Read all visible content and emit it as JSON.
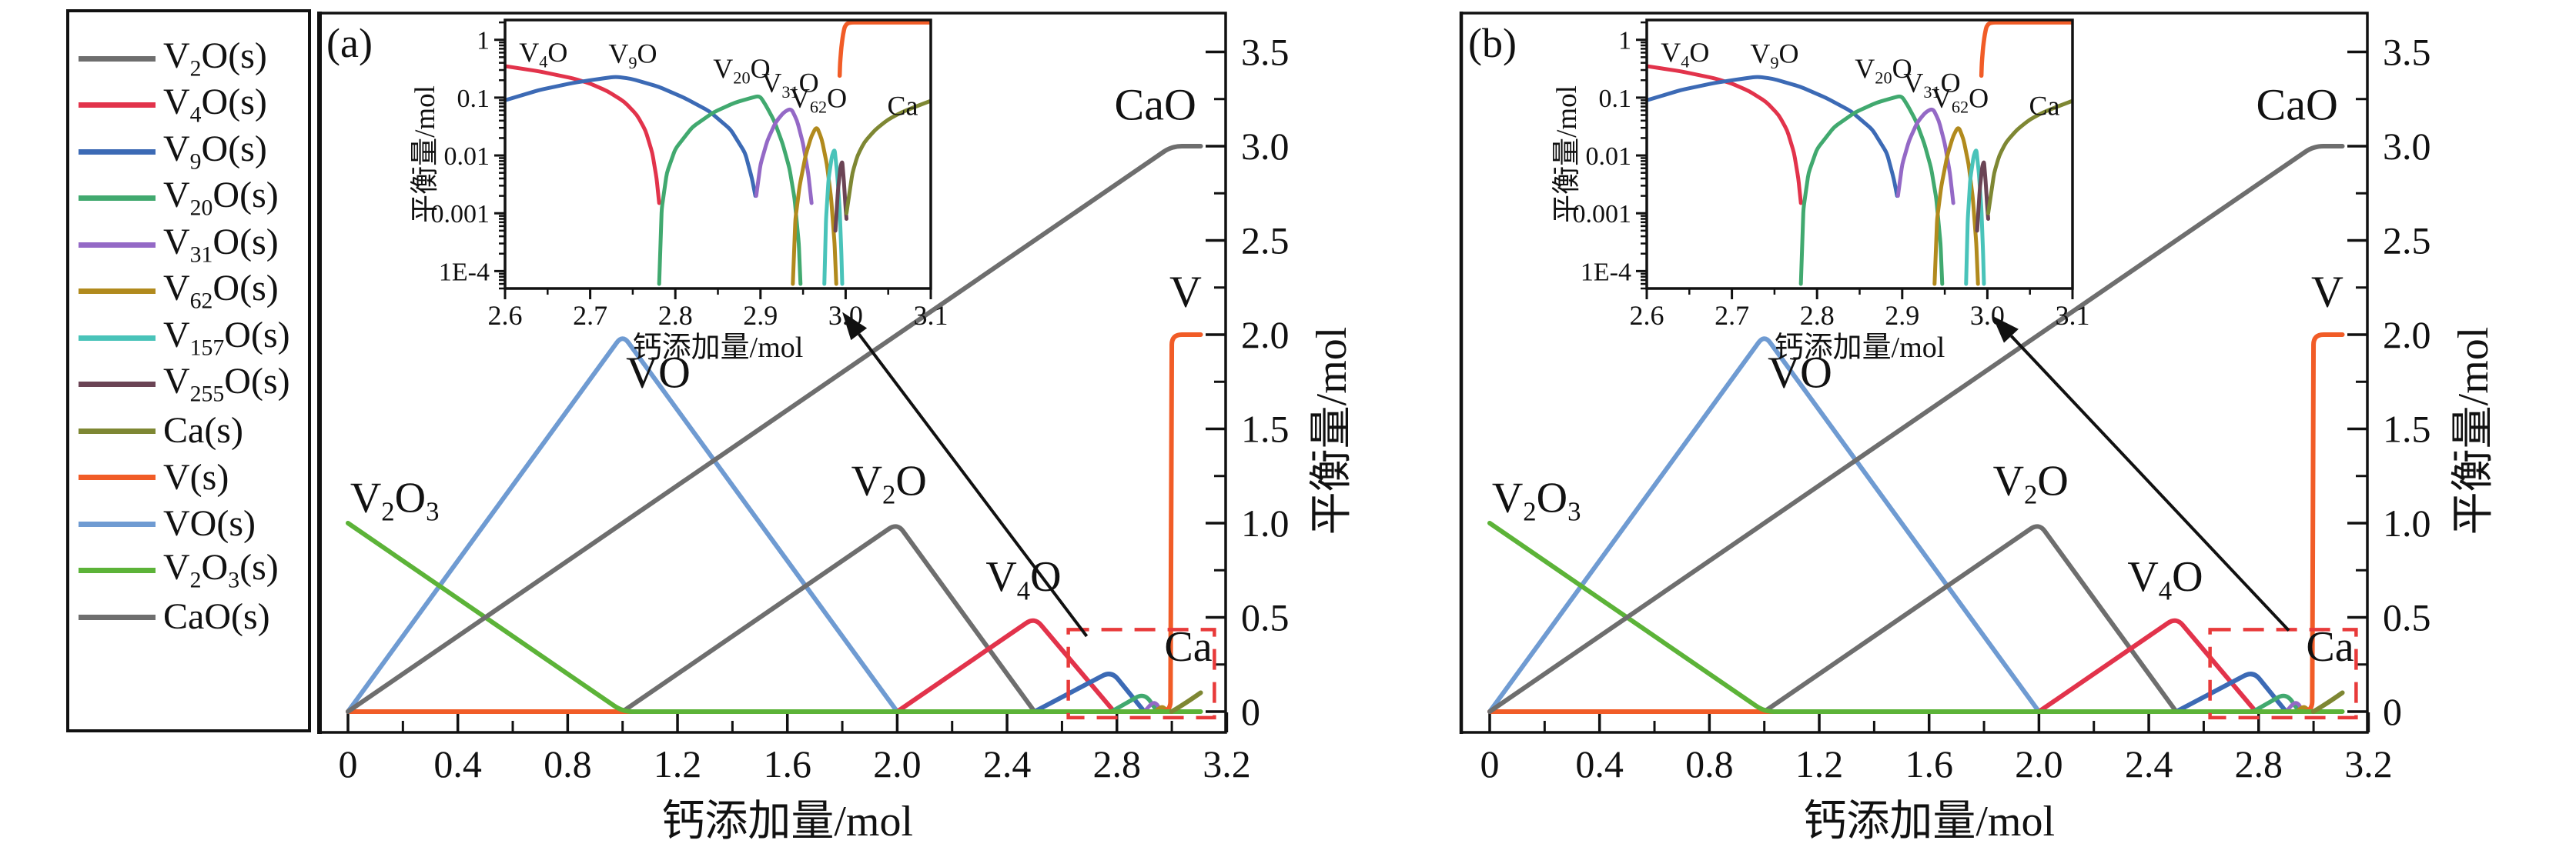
{
  "legend": {
    "items": [
      {
        "label": "V|2|O(s)",
        "color": "#6e6e6e"
      },
      {
        "label": "V|4|O(s)",
        "color": "#e2334b"
      },
      {
        "label": "V|9|O(s)",
        "color": "#3c6ab5"
      },
      {
        "label": "V|20|O(s)",
        "color": "#41a96f"
      },
      {
        "label": "V|31|O(s)",
        "color": "#9469c6"
      },
      {
        "label": "V|62|O(s)",
        "color": "#b18a1d"
      },
      {
        "label": "V|157|O(s)",
        "color": "#49c3b9"
      },
      {
        "label": "V|255|O(s)",
        "color": "#6b4455"
      },
      {
        "label": "Ca(s)",
        "color": "#7e8733"
      },
      {
        "label": "V(s)",
        "color": "#f15c27"
      },
      {
        "label": "VO(s)",
        "color": "#6f9bd2"
      },
      {
        "label": "V|2|O|3|(s)",
        "color": "#5cb338"
      },
      {
        "label": "CaO(s)",
        "color": "#6e6e6e"
      }
    ]
  },
  "chart_data": {
    "type": "line",
    "xlabel": "钙添加量/mol",
    "ylabel": "平衡量/mol",
    "xlim": [
      -0.104,
      3.196
    ],
    "ylim": [
      -0.11,
      3.71
    ],
    "x_ticks": [
      {
        "v": 0,
        "t": "0"
      },
      {
        "v": 0.4,
        "t": "0.4"
      },
      {
        "v": 0.8,
        "t": "0.8"
      },
      {
        "v": 1.2,
        "t": "1.2"
      },
      {
        "v": 1.6,
        "t": "1.6"
      },
      {
        "v": 2.0,
        "t": "2.0"
      },
      {
        "v": 2.4,
        "t": "2.4"
      },
      {
        "v": 2.8,
        "t": "2.8"
      },
      {
        "v": 3.2,
        "t": "3.2"
      }
    ],
    "x_minor": [
      0.2,
      0.6,
      1.0,
      1.4,
      1.8,
      2.2,
      2.6,
      3.0
    ],
    "y_ticks": [
      {
        "v": 0,
        "t": "0"
      },
      {
        "v": 0.5,
        "t": "0.5"
      },
      {
        "v": 1.0,
        "t": "1.0"
      },
      {
        "v": 1.5,
        "t": "1.5"
      },
      {
        "v": 2.0,
        "t": "2.0"
      },
      {
        "v": 2.5,
        "t": "2.5"
      },
      {
        "v": 3.0,
        "t": "3.0"
      },
      {
        "v": 3.5,
        "t": "3.5"
      }
    ],
    "y_minor": [
      0.25,
      0.75,
      1.25,
      1.75,
      2.25,
      2.75,
      3.25
    ],
    "main_series": [
      {
        "name": "VO",
        "color": "#6f9bd2",
        "width": 6,
        "points": [
          [
            0,
            0
          ],
          [
            1.0,
            2.0
          ],
          [
            2.0,
            0
          ]
        ]
      },
      {
        "name": "V2O",
        "color": "#6e6e6e",
        "width": 6,
        "points": [
          [
            1.0,
            0
          ],
          [
            2.0,
            1.0
          ],
          [
            2.5,
            0
          ]
        ]
      },
      {
        "name": "V4O",
        "color": "#e2334b",
        "width": 6,
        "points": [
          [
            2.0,
            0
          ],
          [
            2.5,
            0.5
          ],
          [
            2.79,
            0
          ]
        ]
      },
      {
        "name": "V9O",
        "color": "#3c6ab5",
        "width": 6,
        "points": [
          [
            2.5,
            0
          ],
          [
            2.78,
            0.215
          ],
          [
            2.9,
            0
          ]
        ]
      },
      {
        "name": "V20O",
        "color": "#41a96f",
        "width": 5.5,
        "points": [
          [
            2.78,
            0
          ],
          [
            2.9,
            0.1
          ],
          [
            2.947,
            0
          ]
        ]
      },
      {
        "name": "V31O",
        "color": "#9469c6",
        "width": 5,
        "points": [
          [
            2.9,
            0
          ],
          [
            2.937,
            0.06
          ],
          [
            2.962,
            0
          ]
        ]
      },
      {
        "name": "V62O",
        "color": "#b18a1d",
        "width": 5,
        "points": [
          [
            2.937,
            0
          ],
          [
            2.966,
            0.03
          ],
          [
            2.985,
            0
          ]
        ]
      },
      {
        "name": "V157O",
        "color": "#49c3b9",
        "width": 4.5,
        "points": [
          [
            2.966,
            0
          ],
          [
            2.985,
            0.012
          ],
          [
            2.995,
            0
          ]
        ]
      },
      {
        "name": "V255O",
        "color": "#6b4455",
        "width": 4.5,
        "points": [
          [
            2.985,
            0
          ],
          [
            2.993,
            0.0075
          ],
          [
            2.999,
            0
          ]
        ]
      },
      {
        "name": "V",
        "color": "#f15c27",
        "width": 6,
        "points": [
          [
            0,
            0
          ],
          [
            2.995,
            0
          ],
          [
            3.0,
            2.0
          ],
          [
            3.105,
            2.0
          ]
        ]
      },
      {
        "name": "V2O3",
        "color": "#5cb338",
        "width": 6,
        "points": [
          [
            0,
            1.0
          ],
          [
            1.0,
            0
          ],
          [
            3.105,
            0
          ]
        ]
      },
      {
        "name": "CaO",
        "color": "#6e6e6e",
        "width": 6,
        "points": [
          [
            0,
            0
          ],
          [
            3.0,
            3.0
          ],
          [
            3.105,
            3.0
          ]
        ]
      },
      {
        "name": "Ca",
        "color": "#7e8733",
        "width": 6,
        "points": [
          [
            2.999,
            0
          ],
          [
            3.02,
            0.018
          ],
          [
            3.06,
            0.055
          ],
          [
            3.105,
            0.1
          ]
        ]
      }
    ],
    "main_labels": [
      {
        "text": "V|2|O|3",
        "x": 0.17,
        "y": 1.06,
        "size": 56,
        "anchor": "middle"
      },
      {
        "text": "VO",
        "x": 1.13,
        "y": 1.72,
        "size": 58,
        "anchor": "middle"
      },
      {
        "text": "V|2|O",
        "x": 1.97,
        "y": 1.15,
        "size": 56,
        "anchor": "middle"
      },
      {
        "text": "V|4|O",
        "x": 2.46,
        "y": 0.64,
        "size": 56,
        "anchor": "middle"
      },
      {
        "text": "CaO",
        "x": 2.94,
        "y": 3.14,
        "size": 58,
        "anchor": "middle"
      },
      {
        "text": "V",
        "x": 3.05,
        "y": 2.15,
        "size": 58,
        "anchor": "middle"
      },
      {
        "text": "Ca",
        "x": 3.06,
        "y": 0.27,
        "size": 56,
        "anchor": "middle"
      }
    ],
    "zoom_box": {
      "x1": 2.623,
      "x2": 3.155,
      "y1": -0.032,
      "y2": 0.435,
      "color": "#e83a3a"
    },
    "inset": {
      "type": "line",
      "xlabel": "钙添加量/mol",
      "ylabel": "平衡量/mol",
      "xlim": [
        2.6,
        3.1
      ],
      "ylim": [
        5e-05,
        2.2
      ],
      "x_ticks": [
        {
          "v": 2.6,
          "t": "2.6"
        },
        {
          "v": 2.7,
          "t": "2.7"
        },
        {
          "v": 2.8,
          "t": "2.8"
        },
        {
          "v": 2.9,
          "t": "2.9"
        },
        {
          "v": 3.0,
          "t": "3.0"
        },
        {
          "v": 3.1,
          "t": "3.1"
        }
      ],
      "y_ticks": [
        {
          "v": 1,
          "t": "1"
        },
        {
          "v": 0.1,
          "t": "0.1"
        },
        {
          "v": 0.01,
          "t": "0.01"
        },
        {
          "v": 0.001,
          "t": "0.001"
        },
        {
          "v": 0.0001,
          "t": "1E-4"
        }
      ],
      "series": [
        {
          "name": "V4O",
          "color": "#e2334b",
          "width": 5,
          "points": [
            [
              2.6,
              0.35
            ],
            [
              2.64,
              0.285
            ],
            [
              2.68,
              0.215
            ],
            [
              2.7,
              0.175
            ],
            [
              2.72,
              0.13
            ],
            [
              2.74,
              0.085
            ],
            [
              2.755,
              0.05
            ],
            [
              2.765,
              0.027
            ],
            [
              2.773,
              0.011
            ],
            [
              2.778,
              0.004
            ],
            [
              2.781,
              0.0015
            ]
          ]
        },
        {
          "name": "V9O",
          "color": "#3c6ab5",
          "width": 5,
          "points": [
            [
              2.6,
              0.09
            ],
            [
              2.64,
              0.135
            ],
            [
              2.68,
              0.18
            ],
            [
              2.71,
              0.21
            ],
            [
              2.73,
              0.23
            ],
            [
              2.748,
              0.212
            ],
            [
              2.78,
              0.155
            ],
            [
              2.81,
              0.1
            ],
            [
              2.84,
              0.058
            ],
            [
              2.865,
              0.028
            ],
            [
              2.882,
              0.011
            ],
            [
              2.89,
              0.004
            ],
            [
              2.894,
              0.002
            ]
          ]
        },
        {
          "name": "V20O",
          "color": "#41a96f",
          "width": 5,
          "points": [
            [
              2.781,
              6e-05
            ],
            [
              2.784,
              0.0012
            ],
            [
              2.79,
              0.005
            ],
            [
              2.8,
              0.013
            ],
            [
              2.82,
              0.031
            ],
            [
              2.845,
              0.056
            ],
            [
              2.87,
              0.082
            ],
            [
              2.89,
              0.1
            ],
            [
              2.899,
              0.108
            ],
            [
              2.906,
              0.075
            ],
            [
              2.916,
              0.04
            ],
            [
              2.926,
              0.016
            ],
            [
              2.934,
              0.006
            ],
            [
              2.94,
              0.0018
            ],
            [
              2.945,
              0.0003
            ],
            [
              2.947,
              6e-05
            ]
          ]
        },
        {
          "name": "V31O",
          "color": "#9469c6",
          "width": 5,
          "points": [
            [
              2.895,
              0.002
            ],
            [
              2.9,
              0.007
            ],
            [
              2.908,
              0.018
            ],
            [
              2.918,
              0.038
            ],
            [
              2.928,
              0.057
            ],
            [
              2.936,
              0.065
            ],
            [
              2.943,
              0.04
            ],
            [
              2.95,
              0.016
            ],
            [
              2.956,
              0.005
            ],
            [
              2.96,
              0.0015
            ]
          ]
        },
        {
          "name": "V62O",
          "color": "#b18a1d",
          "width": 5,
          "points": [
            [
              2.938,
              6e-05
            ],
            [
              2.941,
              0.0008
            ],
            [
              2.946,
              0.003
            ],
            [
              2.953,
              0.01
            ],
            [
              2.96,
              0.022
            ],
            [
              2.966,
              0.032
            ],
            [
              2.972,
              0.019
            ],
            [
              2.978,
              0.007
            ],
            [
              2.983,
              0.0018
            ],
            [
              2.987,
              0.0003
            ],
            [
              2.989,
              6e-05
            ]
          ]
        },
        {
          "name": "V157O",
          "color": "#49c3b9",
          "width": 5,
          "points": [
            [
              2.975,
              6e-05
            ],
            [
              2.977,
              0.0008
            ],
            [
              2.98,
              0.004
            ],
            [
              2.984,
              0.01
            ],
            [
              2.987,
              0.013
            ],
            [
              2.99,
              0.005
            ],
            [
              2.993,
              0.0012
            ],
            [
              2.995,
              0.0002
            ],
            [
              2.996,
              6e-05
            ]
          ]
        },
        {
          "name": "V255O",
          "color": "#6b4455",
          "width": 5,
          "points": [
            [
              2.988,
              0.0005
            ],
            [
              2.991,
              0.0025
            ],
            [
              2.994,
              0.0065
            ],
            [
              2.996,
              0.008
            ],
            [
              2.998,
              0.0035
            ],
            [
              3.0,
              0.0012
            ],
            [
              3.001,
              0.0008
            ]
          ]
        },
        {
          "name": "Ca",
          "color": "#7e8733",
          "width": 5,
          "points": [
            [
              3.001,
              0.001
            ],
            [
              3.004,
              0.002
            ],
            [
              3.008,
              0.005
            ],
            [
              3.014,
              0.01
            ],
            [
              3.022,
              0.017
            ],
            [
              3.035,
              0.028
            ],
            [
              3.05,
              0.042
            ],
            [
              3.065,
              0.055
            ],
            [
              3.08,
              0.068
            ],
            [
              3.1,
              0.088
            ]
          ]
        },
        {
          "name": "V",
          "color": "#f15c27",
          "width": 5.5,
          "points": [
            [
              2.993,
              0.24
            ],
            [
              2.9935,
              0.4
            ],
            [
              2.995,
              0.75
            ],
            [
              2.997,
              1.25
            ],
            [
              2.999,
              1.7
            ],
            [
              3.002,
              1.93
            ],
            [
              3.007,
              2.0
            ],
            [
              3.1,
              2.0
            ]
          ]
        }
      ],
      "labels": [
        {
          "text": "V|4|O",
          "x": 2.645,
          "y": 0.42,
          "size": 36,
          "anchor": "middle"
        },
        {
          "text": "V|9|O",
          "x": 2.75,
          "y": 0.4,
          "size": 36,
          "anchor": "middle"
        },
        {
          "text": "V|20|O",
          "x": 2.878,
          "y": 0.22,
          "size": 36,
          "anchor": "middle"
        },
        {
          "text": "V|31|O",
          "x": 2.935,
          "y": 0.125,
          "size": 36,
          "anchor": "middle"
        },
        {
          "text": "V|62|O",
          "x": 2.968,
          "y": 0.068,
          "size": 36,
          "anchor": "middle"
        },
        {
          "text": "Ca",
          "x": 3.067,
          "y": 0.05,
          "size": 36,
          "anchor": "middle"
        }
      ]
    },
    "panels": [
      {
        "id": "a",
        "label": "(a)",
        "arrow": {
          "from": [
            2.69,
            0.4
          ],
          "to": [
            1.8,
            2.12
          ]
        }
      },
      {
        "id": "b",
        "label": "(b)",
        "arrow": {
          "from": [
            2.91,
            0.43
          ],
          "to": [
            1.83,
            2.1
          ]
        }
      }
    ]
  }
}
